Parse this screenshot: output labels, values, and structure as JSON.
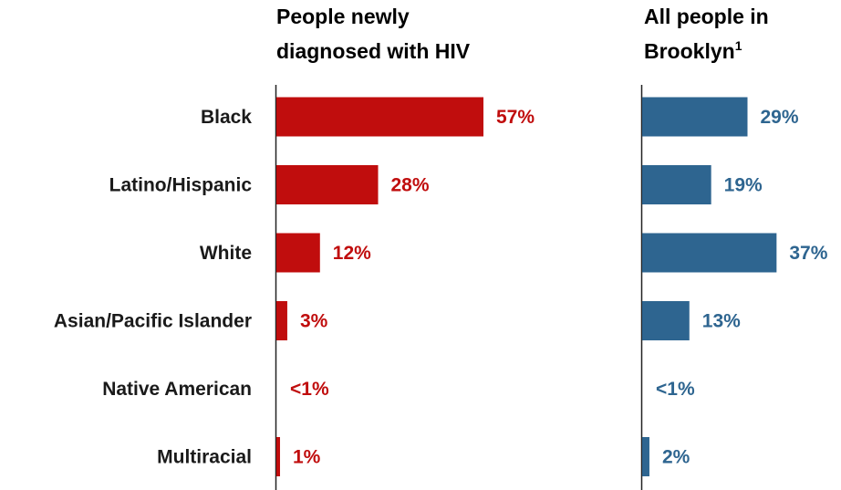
{
  "chart_data": {
    "type": "bar",
    "orientation": "horizontal",
    "categories": [
      "Black",
      "Latino/Hispanic",
      "White",
      "Asian/Pacific Islander",
      "Native American",
      "Multiracial"
    ],
    "series": [
      {
        "name": "People newly diagnosed with HIV",
        "title_lines": [
          "People newly",
          "diagnosed with HIV"
        ],
        "values": [
          57,
          28,
          12,
          3,
          0.4,
          1
        ],
        "labels": [
          "57%",
          "28%",
          "12%",
          "3%",
          "<1%",
          "1%"
        ],
        "color": "#c00d0d"
      },
      {
        "name": "All people in Brooklyn",
        "title_lines": [
          "All people in",
          "Brooklyn"
        ],
        "title_superscript": "1",
        "values": [
          29,
          19,
          37,
          13,
          0.4,
          2
        ],
        "labels": [
          "29%",
          "19%",
          "37%",
          "13%",
          "<1%",
          "2%"
        ],
        "color": "#2e6590"
      }
    ],
    "legend": "none",
    "grid": false,
    "xlim": [
      0,
      60
    ]
  }
}
